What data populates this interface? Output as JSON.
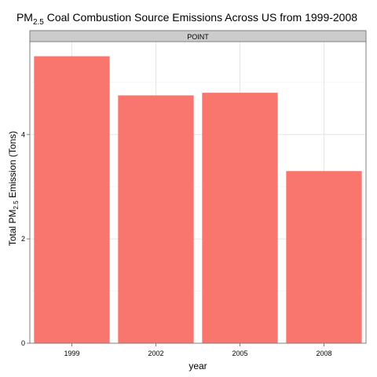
{
  "chart_data": {
    "type": "bar",
    "title": {
      "prefix": "PM",
      "subscript": "2.5",
      "suffix": " Coal Combustion Source Emissions Across US from 1999-2008"
    },
    "facet_label": "POINT",
    "xlabel": "year",
    "ylabel": {
      "prefix": "Total PM",
      "subscript": "2.5",
      "suffix": " Emission (Tons)"
    },
    "categories": [
      "1999",
      "2002",
      "2005",
      "2008"
    ],
    "values": [
      5.5,
      4.75,
      4.8,
      3.3
    ],
    "yticks": [
      0,
      2,
      4
    ],
    "ylim": [
      0,
      5.78
    ],
    "bar_color": "#F8766D",
    "panel_border_color": "#7F7F7F",
    "strip_fill": "#CCCCCC",
    "grid_major_color": "#E5E5E5",
    "grid_minor_color": "#F2F2F2",
    "grid": true,
    "legend": "none"
  }
}
